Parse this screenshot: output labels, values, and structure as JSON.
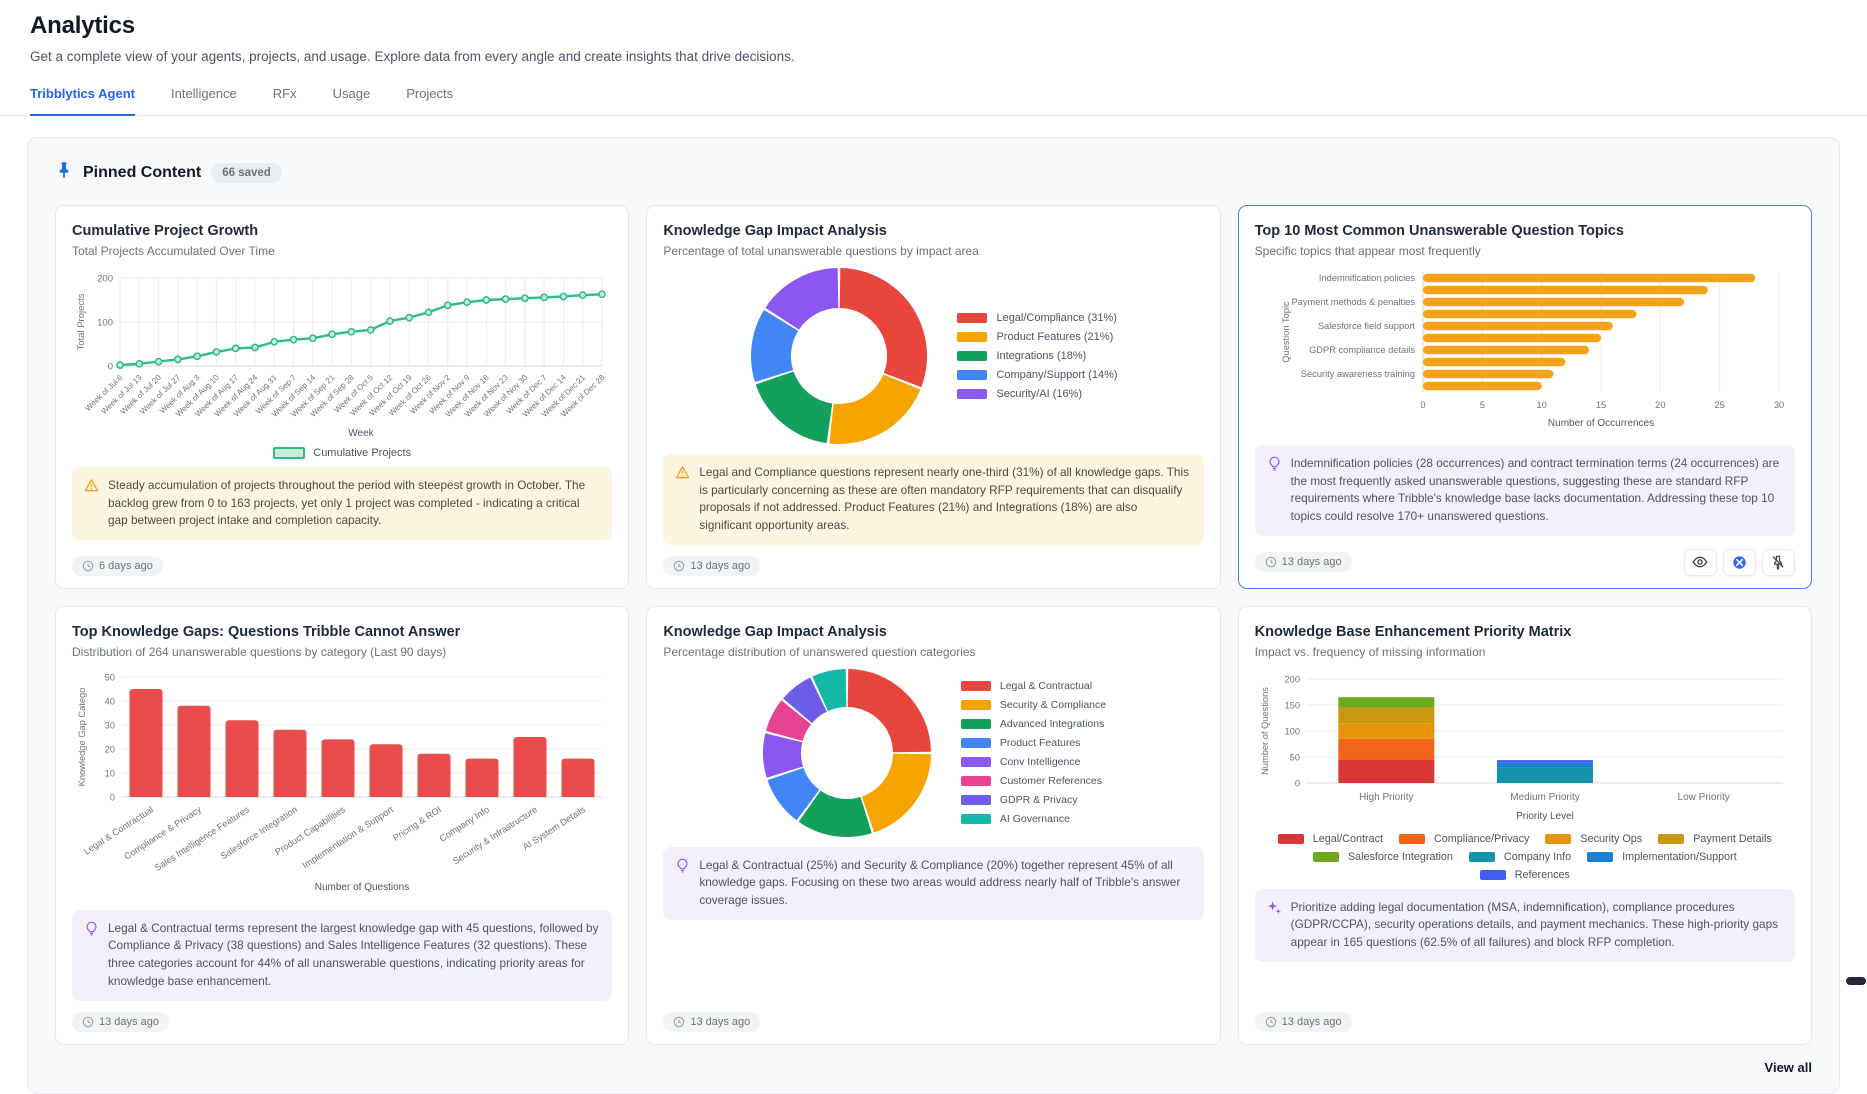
{
  "page": {
    "title": "Analytics",
    "subtitle": "Get a complete view of your agents, projects, and usage. Explore data from every angle and create insights that drive decisions."
  },
  "tabs": [
    {
      "label": "Tribblytics Agent",
      "active": true
    },
    {
      "label": "Intelligence",
      "active": false
    },
    {
      "label": "RFx",
      "active": false
    },
    {
      "label": "Usage",
      "active": false
    },
    {
      "label": "Projects",
      "active": false
    }
  ],
  "pinned": {
    "title": "Pinned Content",
    "badge": "66 saved",
    "view_all": "View all"
  },
  "colors": {
    "accent": "#2563eb",
    "warning": "#f0a020",
    "insight_purple": "#8b5cf6",
    "panel_bg": "#f8f9fb"
  },
  "icons": {
    "header": "pushpin-icon",
    "timestamp": "clock-icon",
    "insight_warning": "warning-triangle-icon",
    "insight_idea": "lightbulb-icon",
    "insight_ai": "sparkles-icon",
    "card_actions": [
      "eye-icon",
      "blue-orb-icon",
      "unpin-icon"
    ]
  },
  "cards": [
    {
      "title": "Cumulative Project Growth",
      "subtitle": "Total Projects Accumulated Over Time",
      "timestamp": "6 days ago",
      "insight": {
        "type": "warning",
        "text": "Steady accumulation of projects throughout the period with steepest growth in October. The backlog grew from 0 to 163 projects, yet only 1 project was completed - indicating a critical gap between project intake and completion capacity."
      },
      "chart_data": {
        "type": "line",
        "categories": [
          "Week of Jul 6",
          "Week of Jul 13",
          "Week of Jul 20",
          "Week of Jul 27",
          "Week of Aug 3",
          "Week of Aug 10",
          "Week of Aug 17",
          "Week of Aug 24",
          "Week of Aug 31",
          "Week of Sep 7",
          "Week of Sep 14",
          "Week of Sep 21",
          "Week of Sep 28",
          "Week of Oct 5",
          "Week of Oct 12",
          "Week of Oct 19",
          "Week of Oct 26",
          "Week of Nov 2",
          "Week of Nov 9",
          "Week of Nov 16",
          "Week of Nov 23",
          "Week of Nov 30",
          "Week of Dec 7",
          "Week of Dec 14",
          "Week of Dec 21",
          "Week of Dec 28"
        ],
        "values": [
          2,
          5,
          10,
          15,
          22,
          32,
          40,
          42,
          55,
          60,
          63,
          72,
          78,
          82,
          102,
          110,
          122,
          138,
          145,
          150,
          152,
          154,
          156,
          158,
          161,
          163
        ],
        "xlabel": "Week",
        "ylabel": "Total Projects",
        "ylim": [
          0,
          200
        ],
        "yticks": [
          0,
          100,
          200
        ],
        "legend": [
          "Cumulative Projects"
        ],
        "line_color": "#2ebd85"
      }
    },
    {
      "title": "Knowledge Gap Impact Analysis",
      "subtitle": "Percentage of total unanswerable questions by impact area",
      "timestamp": "13 days ago",
      "insight": {
        "type": "warning",
        "text": "Legal and Compliance questions represent nearly one-third (31%) of all knowledge gaps. This is particularly concerning as these are often mandatory RFP requirements that can disqualify proposals if not addressed. Product Features (21%) and Integrations (18%) are also significant opportunity areas."
      },
      "chart_data": {
        "type": "pie",
        "labels": [
          "Legal/Compliance (31%)",
          "Product Features (21%)",
          "Integrations (18%)",
          "Company/Support (14%)",
          "Security/AI (16%)"
        ],
        "values": [
          31,
          21,
          18,
          14,
          16
        ],
        "colors": [
          "#e8453c",
          "#f5a400",
          "#12a05c",
          "#4285f4",
          "#8a57f2"
        ],
        "donut": true,
        "legend_position": "right"
      }
    },
    {
      "title": "Top 10 Most Common Unanswerable Question Topics",
      "subtitle": "Specific topics that appear most frequently",
      "timestamp": "13 days ago",
      "selected": true,
      "actions": [
        "view",
        "colored-view",
        "unpin"
      ],
      "insight": {
        "type": "idea",
        "text": "Indemnification policies (28 occurrences) and contract termination terms (24 occurrences) are the most frequently asked unanswerable questions, suggesting these are standard RFP requirements where Tribble's knowledge base lacks documentation. Addressing these top 10 topics could resolve 170+ unanswered questions."
      },
      "chart_data": {
        "type": "bar-horizontal",
        "categories": [
          "Indemnification policies",
          "",
          "Payment methods & penalties",
          "",
          "Salesforce field support",
          "",
          "GDPR compliance details",
          "",
          "Security awareness training",
          ""
        ],
        "values": [
          28,
          24,
          22,
          18,
          16,
          15,
          14,
          12,
          11,
          10
        ],
        "xlabel": "Number of Occurrences",
        "ylabel": "Question Topic",
        "xlim": [
          0,
          30
        ],
        "xticks": [
          0,
          5,
          10,
          15,
          20,
          25,
          30
        ],
        "bar_color": "#f5a31a"
      }
    },
    {
      "title": "Top Knowledge Gaps: Questions Tribble Cannot Answer",
      "subtitle": "Distribution of 264 unanswerable questions by category (Last 90 days)",
      "timestamp": "13 days ago",
      "insight": {
        "type": "idea",
        "text": "Legal & Contractual terms represent the largest knowledge gap with 45 questions, followed by Compliance & Privacy (38 questions) and Sales Intelligence Features (32 questions). These three categories account for 44% of all unanswerable questions, indicating priority areas for knowledge base enhancement."
      },
      "chart_data": {
        "type": "bar",
        "categories": [
          "Legal & Contractual",
          "Compliance & Privacy",
          "Sales Intelligence Features",
          "Salesforce Integration",
          "Product Capabilities",
          "Implementation & Support",
          "Pricing & ROI",
          "Company Info",
          "Security & Infrastructure",
          "AI System Details"
        ],
        "values": [
          45,
          38,
          32,
          28,
          24,
          22,
          18,
          16,
          25,
          16
        ],
        "xlabel": "Number of Questions",
        "ylabel": "Knowledge Gap Catego",
        "ylim": [
          0,
          50
        ],
        "yticks": [
          0,
          10,
          20,
          30,
          40,
          50
        ],
        "bar_color": "#e84c4c"
      }
    },
    {
      "title": "Knowledge Gap Impact Analysis",
      "subtitle": "Percentage distribution of unanswered question categories",
      "timestamp": "13 days ago",
      "insight": {
        "type": "idea",
        "text": "Legal & Contractual (25%) and Security & Compliance (20%) together represent 45% of all knowledge gaps. Focusing on these two areas would address nearly half of Tribble's answer coverage issues."
      },
      "chart_data": {
        "type": "pie",
        "labels": [
          "Legal & Contractual",
          "Security & Compliance",
          "Advanced Integrations",
          "Product Features",
          "Conv Intelligence",
          "Customer References",
          "GDPR & Privacy",
          "AI Governance"
        ],
        "values": [
          25,
          20,
          15,
          10,
          9,
          7,
          7,
          7
        ],
        "colors": [
          "#e8453c",
          "#f5a400",
          "#12a05c",
          "#4285f4",
          "#8a57f2",
          "#e84393",
          "#6c5ce7",
          "#14b8a6"
        ],
        "donut": true,
        "legend_position": "right"
      }
    },
    {
      "title": "Knowledge Base Enhancement Priority Matrix",
      "subtitle": "Impact vs. frequency of missing information",
      "timestamp": "13 days ago",
      "insight": {
        "type": "ai",
        "text": "Prioritize adding legal documentation (MSA, indemnification), compliance procedures (GDPR/CCPA), security operations details, and payment mechanics. These high-priority gaps appear in 165 questions (62.5% of all failures) and block RFP completion."
      },
      "chart_data": {
        "type": "stacked-bar",
        "categories": [
          "High Priority",
          "Medium Priority",
          "Low Priority"
        ],
        "series": [
          {
            "name": "Legal/Contract",
            "color": "#d93636",
            "values": [
              45,
              0,
              0
            ]
          },
          {
            "name": "Compliance/Privacy",
            "color": "#f2641c",
            "values": [
              40,
              0,
              0
            ]
          },
          {
            "name": "Security Ops",
            "color": "#e8940a",
            "values": [
              30,
              0,
              0
            ]
          },
          {
            "name": "Payment Details",
            "color": "#c9980f",
            "values": [
              30,
              0,
              0
            ]
          },
          {
            "name": "Salesforce Integration",
            "color": "#6fa81f",
            "values": [
              20,
              0,
              0
            ]
          },
          {
            "name": "Company Info",
            "color": "#1593ad",
            "values": [
              0,
              30,
              0
            ]
          },
          {
            "name": "Implementation/Support",
            "color": "#1b7fd4",
            "values": [
              0,
              9,
              0
            ]
          },
          {
            "name": "References",
            "color": "#3f5ef0",
            "values": [
              0,
              5,
              0
            ]
          }
        ],
        "xlabel": "Priority Level",
        "ylabel": "Number of Questions",
        "ylim": [
          0,
          200
        ],
        "yticks": [
          0,
          50,
          100,
          150,
          200
        ]
      }
    }
  ]
}
